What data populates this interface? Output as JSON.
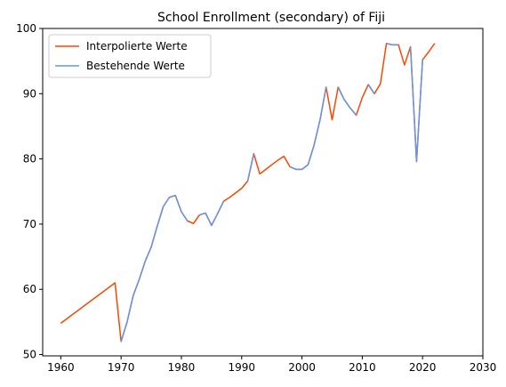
{
  "chart_data": {
    "type": "line",
    "title": "School Enrollment (secondary) of Fiji",
    "xlabel": "",
    "ylabel": "",
    "xlim": [
      1957,
      2030
    ],
    "ylim": [
      49.8,
      100
    ],
    "xticks": [
      1960,
      1970,
      1980,
      1990,
      2000,
      2010,
      2020,
      2030
    ],
    "yticks": [
      50,
      60,
      70,
      80,
      90,
      100
    ],
    "grid": false,
    "legend_position": "top-left",
    "series": [
      {
        "name": "Interpolierte Werte",
        "color": "#ff4500",
        "x": [
          1960,
          1969,
          1970,
          1971,
          1972,
          1973,
          1974,
          1975,
          1976,
          1977,
          1978,
          1979,
          1980,
          1981,
          1982,
          1983,
          1984,
          1985,
          1986,
          1987,
          1988,
          1989,
          1990,
          1991,
          1992,
          1993,
          1994,
          1995,
          1996,
          1997,
          1998,
          1999,
          2000,
          2001,
          2002,
          2003,
          2004,
          2005,
          2006,
          2007,
          2008,
          2009,
          2010,
          2011,
          2012,
          2013,
          2014,
          2015,
          2016,
          2017,
          2018,
          2019,
          2020,
          2021,
          2022
        ],
        "values": [
          54.8,
          61.0,
          52.0,
          55.0,
          59.0,
          61.5,
          64.3,
          66.5,
          69.7,
          72.7,
          74.1,
          74.4,
          71.9,
          70.5,
          70.1,
          71.4,
          71.7,
          69.8,
          71.6,
          73.5,
          74.1,
          74.8,
          75.5,
          76.6,
          80.8,
          77.7,
          78.4,
          79.1,
          79.8,
          80.4,
          78.8,
          78.4,
          78.4,
          79.1,
          82.1,
          86.0,
          91.0,
          86.0,
          91.0,
          89.1,
          87.8,
          86.7,
          89.4,
          91.4,
          90.0,
          91.5,
          97.7,
          97.5,
          97.5,
          94.4,
          97.2,
          79.6,
          95.2,
          96.4,
          97.7
        ]
      },
      {
        "name": "Bestehende Werte",
        "color": "#6495ed",
        "x": [
          1970,
          1971,
          1972,
          1973,
          1974,
          1975,
          1976,
          1977,
          1978,
          1979,
          1980,
          1981,
          null,
          1983,
          1984,
          1985,
          1986,
          1987,
          null,
          1991,
          1992,
          null,
          1998,
          1999,
          2000,
          2001,
          2002,
          2003,
          2004,
          null,
          2006,
          2007,
          2008,
          2009,
          null,
          2011,
          2012,
          null,
          2014,
          2015,
          2016,
          null,
          2018,
          2019,
          2020
        ],
        "values": [
          52.0,
          55.0,
          59.0,
          61.5,
          64.3,
          66.5,
          69.7,
          72.7,
          74.1,
          74.4,
          71.9,
          70.5,
          null,
          71.4,
          71.7,
          69.8,
          71.6,
          73.5,
          null,
          76.6,
          80.8,
          null,
          78.8,
          78.4,
          78.4,
          79.1,
          82.1,
          86.0,
          91.0,
          null,
          91.0,
          89.1,
          87.8,
          86.7,
          null,
          91.4,
          90.0,
          null,
          97.7,
          97.5,
          97.5,
          null,
          97.2,
          79.6,
          95.2
        ]
      }
    ]
  }
}
